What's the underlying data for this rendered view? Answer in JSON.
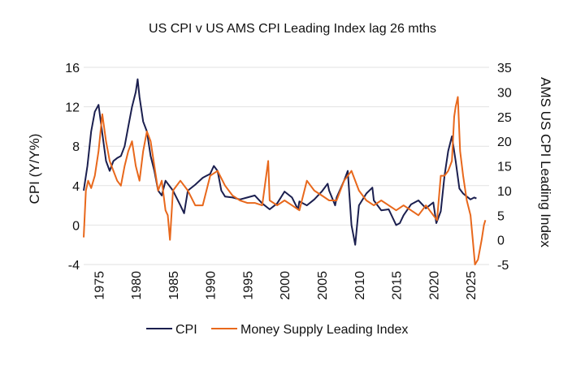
{
  "chart_data": {
    "type": "line",
    "title": "US CPI v US AMS CPI Leading Index lag 26 mths",
    "ylabel_left": "CPI (Y/Y%)",
    "ylabel_right": "AMS US CPI Leading Index",
    "xlabel": "",
    "xlim": [
      1973,
      2027.5
    ],
    "ylim_left": [
      -4,
      16
    ],
    "ylim_right": [
      -5,
      35
    ],
    "x_ticks": [
      "1975",
      "1980",
      "1985",
      "1990",
      "1995",
      "2000",
      "2005",
      "2010",
      "2015",
      "2020",
      "2025"
    ],
    "y_left_ticks": [
      "-4",
      "0",
      "4",
      "8",
      "12",
      "16"
    ],
    "y_right_ticks": [
      "-5",
      "0",
      "5",
      "10",
      "15",
      "20",
      "25",
      "30",
      "35"
    ],
    "grid": true,
    "legend_position": "bottom",
    "series": [
      {
        "name": "CPI",
        "color": "#1b1f4f",
        "axis": "left",
        "x": [
          1973.0,
          1973.5,
          1974.0,
          1974.5,
          1975.0,
          1975.5,
          1976.0,
          1976.5,
          1977.0,
          1977.5,
          1978.0,
          1978.5,
          1979.0,
          1979.5,
          1980.0,
          1980.25,
          1980.5,
          1981.0,
          1981.5,
          1982.0,
          1982.5,
          1983.0,
          1983.5,
          1984.0,
          1985.0,
          1986.0,
          1986.5,
          1987.0,
          1988.0,
          1989.0,
          1990.0,
          1990.5,
          1991.0,
          1991.5,
          1992.0,
          1993.0,
          1994.0,
          1995.0,
          1996.0,
          1997.0,
          1998.0,
          1999.0,
          2000.0,
          2001.0,
          2001.8,
          2002.0,
          2003.0,
          2004.0,
          2005.0,
          2005.8,
          2006.0,
          2006.8,
          2007.0,
          2008.0,
          2008.5,
          2009.0,
          2009.5,
          2010.0,
          2011.0,
          2011.8,
          2012.0,
          2013.0,
          2014.0,
          2015.0,
          2015.5,
          2016.0,
          2017.0,
          2018.0,
          2019.0,
          2020.0,
          2020.4,
          2021.0,
          2021.5,
          2022.0,
          2022.5,
          2023.0,
          2023.5,
          2024.0,
          2024.5,
          2025.0,
          2025.5,
          2025.8
        ],
        "y": [
          3.5,
          6.0,
          9.5,
          11.5,
          12.2,
          9.3,
          6.5,
          5.5,
          6.5,
          6.8,
          7.0,
          8.0,
          10.0,
          12.0,
          13.5,
          14.8,
          13.0,
          10.5,
          9.5,
          7.0,
          5.5,
          3.5,
          3.0,
          4.5,
          3.5,
          2.0,
          1.2,
          3.5,
          4.1,
          4.8,
          5.2,
          6.0,
          5.5,
          3.5,
          2.9,
          2.8,
          2.6,
          2.8,
          3.0,
          2.2,
          1.6,
          2.2,
          3.4,
          2.8,
          1.6,
          2.4,
          2.0,
          2.6,
          3.4,
          4.2,
          3.5,
          2.0,
          2.8,
          4.5,
          5.5,
          0.0,
          -2.0,
          2.0,
          3.2,
          3.8,
          2.5,
          1.5,
          1.6,
          0.0,
          0.2,
          1.0,
          2.1,
          2.5,
          1.7,
          2.3,
          0.2,
          1.4,
          5.0,
          7.5,
          9.0,
          6.5,
          3.7,
          3.2,
          2.9,
          2.6,
          2.8,
          2.7
        ]
      },
      {
        "name": "Money Supply Leading Index",
        "color": "#e8681c",
        "axis": "right",
        "x": [
          1973.0,
          1973.3,
          1973.6,
          1974.0,
          1974.5,
          1975.0,
          1975.5,
          1976.0,
          1976.5,
          1977.0,
          1977.5,
          1978.0,
          1978.5,
          1979.0,
          1979.5,
          1980.0,
          1980.5,
          1981.0,
          1981.5,
          1982.0,
          1982.5,
          1983.0,
          1983.5,
          1984.0,
          1984.3,
          1984.6,
          1985.0,
          1986.0,
          1987.0,
          1988.0,
          1989.0,
          1990.0,
          1991.0,
          1992.0,
          1993.0,
          1994.0,
          1995.0,
          1996.0,
          1997.0,
          1997.8,
          1998.0,
          1999.0,
          2000.0,
          2001.0,
          2002.0,
          2003.0,
          2004.0,
          2005.0,
          2006.0,
          2007.0,
          2008.0,
          2009.0,
          2010.0,
          2011.0,
          2012.0,
          2013.0,
          2014.0,
          2015.0,
          2016.0,
          2017.0,
          2018.0,
          2019.0,
          2020.0,
          2020.5,
          2021.0,
          2021.5,
          2022.0,
          2022.5,
          2022.8,
          2023.0,
          2023.3,
          2023.6,
          2024.0,
          2024.5,
          2025.0,
          2025.3,
          2025.6,
          2026.0,
          2026.5,
          2026.8,
          2027.0
        ],
        "y": [
          0.5,
          10.0,
          12.0,
          10.5,
          13.0,
          18.0,
          25.5,
          20.0,
          16.0,
          14.0,
          12.0,
          11.0,
          15.0,
          18.0,
          20.0,
          15.0,
          12.0,
          18.0,
          22.0,
          20.0,
          15.0,
          10.0,
          12.0,
          6.0,
          5.0,
          0.0,
          10.0,
          12.0,
          10.0,
          7.0,
          7.0,
          13.0,
          14.0,
          11.0,
          9.0,
          8.0,
          7.5,
          7.5,
          7.0,
          16.0,
          8.0,
          7.0,
          8.0,
          7.0,
          6.0,
          12.0,
          10.0,
          9.0,
          8.0,
          8.0,
          12.0,
          14.0,
          10.0,
          8.0,
          7.0,
          8.0,
          7.0,
          6.0,
          7.0,
          6.0,
          5.0,
          7.0,
          5.0,
          4.0,
          13.0,
          13.0,
          14.0,
          16.0,
          25.0,
          27.0,
          29.0,
          18.0,
          13.0,
          8.0,
          5.0,
          0.0,
          -5.0,
          -4.0,
          0.0,
          3.0,
          4.0
        ]
      }
    ]
  }
}
